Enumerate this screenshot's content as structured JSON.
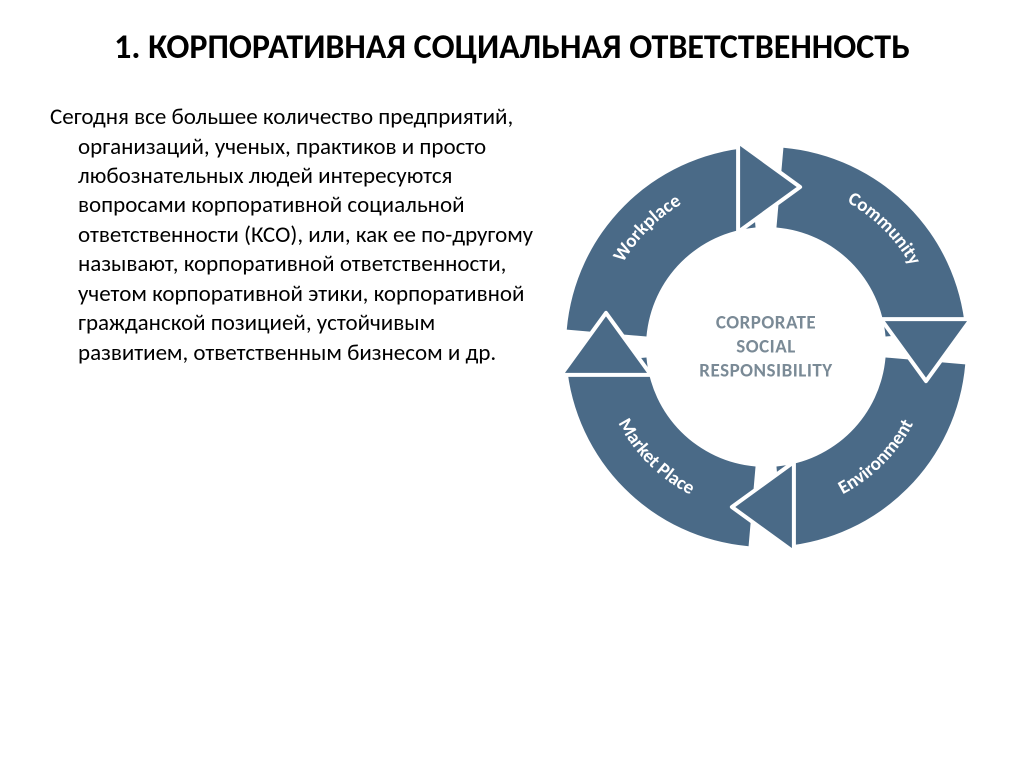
{
  "title": "1. КОРПОРАТИВНАЯ СОЦИАЛЬНАЯ ОТВЕТСТВЕННОСТЬ",
  "title_fontsize": 34,
  "title_color": "#000000",
  "body_text": "Сегодня все большее количество предприятий, организаций, ученых, практиков и просто любознательных людей интересуются вопросами корпоративной социальной ответственности (КСО), или, как ее по-другому называют, корпоративной ответственности, учетом корпоративной этики, корпоративной гражданской позицией, устойчивым развитием, ответственным бизнесом и др.",
  "body_fontsize": 23,
  "body_color": "#000000",
  "diagram": {
    "type": "circular-arrow-cycle",
    "ring_color": "#4a6a87",
    "arrow_color": "#4a6a87",
    "background_color": "#ffffff",
    "outer_radius": 200,
    "inner_radius": 120,
    "ring_label_font": 19,
    "ring_label_color": "#ffffff",
    "segments": [
      {
        "label": "Workplace",
        "start_deg": 180,
        "end_deg": 270
      },
      {
        "label": "Community",
        "start_deg": 270,
        "end_deg": 360
      },
      {
        "label": "Environment",
        "start_deg": 0,
        "end_deg": 90
      },
      {
        "label": "Market Place",
        "start_deg": 90,
        "end_deg": 180
      }
    ],
    "arrows": [
      {
        "angle_deg": 270,
        "direction": "cw"
      },
      {
        "angle_deg": 0,
        "direction": "cw"
      },
      {
        "angle_deg": 90,
        "direction": "cw"
      },
      {
        "angle_deg": 180,
        "direction": "cw"
      }
    ],
    "center_text_line1": "CORPORATE",
    "center_text_line2": "SOCIAL",
    "center_text_line3": "RESPONSIBILITY",
    "center_text_color": "#7a8a96",
    "center_text_fontsize": 19
  }
}
